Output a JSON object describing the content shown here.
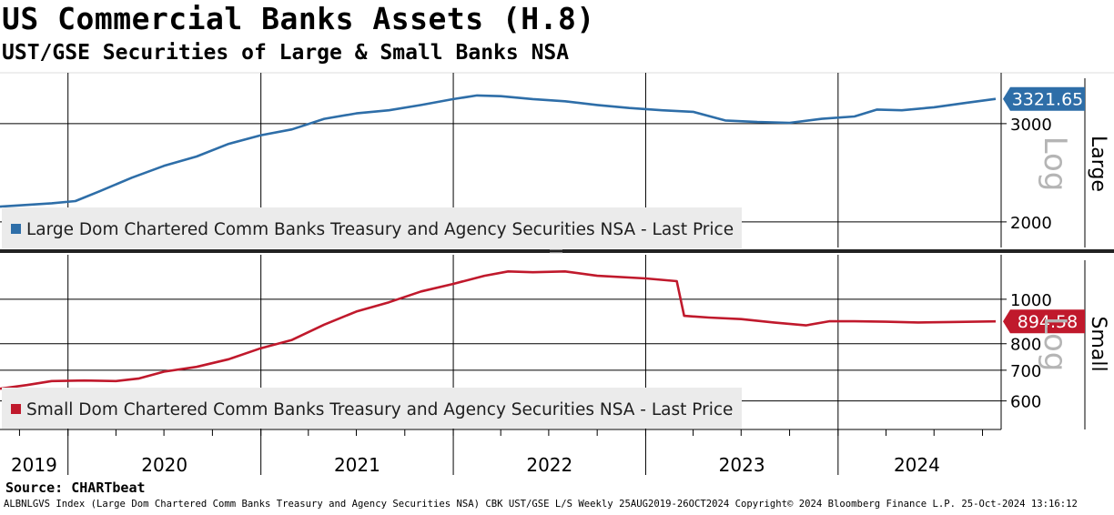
{
  "header": {
    "title": "US Commercial Banks Assets (H.8)",
    "subtitle": "UST/GSE Securities of Large & Small Banks NSA"
  },
  "footer": {
    "source": "Source: CHARTbeat",
    "info": "ALBNLGVS Index (Large Dom Chartered Comm Banks Treasury and Agency Securities NSA) CBK UST/GSE L/S  Weekly 25AUG2019-26OCT2024  Copyright© 2024 Bloomberg Finance L.P. 25-Oct-2024 13:16:12"
  },
  "colors": {
    "large": "#2e6ea8",
    "small": "#c0192c",
    "legend_bg": "#ebebeb"
  },
  "chart_data": [
    {
      "type": "line",
      "title": "",
      "x_range": [
        "2019-08-25",
        "2024-10-26"
      ],
      "x_tick_labels": [
        "2019",
        "2020",
        "2021",
        "2022",
        "2023",
        "2024"
      ],
      "ylabel": "Large",
      "scale": "log",
      "scale_label": "Log",
      "yticks": [
        2000,
        3000
      ],
      "ylim": [
        1800,
        3700
      ],
      "last_value_label": "3321.65",
      "legend": "top-left",
      "series": [
        {
          "name": "Large Dom Chartered Comm Banks Treasury and Agency Securities NSA - Last Price",
          "points": [
            [
              "2019-08-25",
              2130
            ],
            [
              "2019-12-01",
              2160
            ],
            [
              "2020-01-15",
              2180
            ],
            [
              "2020-03-01",
              2270
            ],
            [
              "2020-05-01",
              2400
            ],
            [
              "2020-07-01",
              2520
            ],
            [
              "2020-09-01",
              2620
            ],
            [
              "2020-11-01",
              2760
            ],
            [
              "2021-01-01",
              2860
            ],
            [
              "2021-03-01",
              2930
            ],
            [
              "2021-05-01",
              3060
            ],
            [
              "2021-07-01",
              3130
            ],
            [
              "2021-09-01",
              3170
            ],
            [
              "2021-11-01",
              3240
            ],
            [
              "2022-01-01",
              3320
            ],
            [
              "2022-02-15",
              3370
            ],
            [
              "2022-04-01",
              3360
            ],
            [
              "2022-06-01",
              3320
            ],
            [
              "2022-08-01",
              3290
            ],
            [
              "2022-10-01",
              3240
            ],
            [
              "2022-12-01",
              3200
            ],
            [
              "2023-02-01",
              3170
            ],
            [
              "2023-04-01",
              3150
            ],
            [
              "2023-06-01",
              3040
            ],
            [
              "2023-08-01",
              3020
            ],
            [
              "2023-10-01",
              3010
            ],
            [
              "2023-12-01",
              3060
            ],
            [
              "2024-02-01",
              3090
            ],
            [
              "2024-03-15",
              3180
            ],
            [
              "2024-05-01",
              3170
            ],
            [
              "2024-07-01",
              3210
            ],
            [
              "2024-09-01",
              3270
            ],
            [
              "2024-10-26",
              3321.65
            ]
          ]
        }
      ]
    },
    {
      "type": "line",
      "title": "",
      "x_range": [
        "2019-08-25",
        "2024-10-26"
      ],
      "x_tick_labels": [
        "2019",
        "2020",
        "2021",
        "2022",
        "2023",
        "2024"
      ],
      "ylabel": "Small",
      "scale": "log",
      "scale_label": "Log",
      "yticks": [
        600,
        700,
        800,
        1000
      ],
      "ylim": [
        520,
        1250
      ],
      "last_value_label": "894.58",
      "legend": "bottom-left",
      "series": [
        {
          "name": "Small Dom Chartered Comm Banks Treasury and Agency Securities NSA - Last Price",
          "points": [
            [
              "2019-08-25",
              638
            ],
            [
              "2019-10-15",
              650
            ],
            [
              "2019-12-01",
              663
            ],
            [
              "2020-02-01",
              665
            ],
            [
              "2020-04-01",
              663
            ],
            [
              "2020-05-15",
              672
            ],
            [
              "2020-07-01",
              695
            ],
            [
              "2020-09-01",
              712
            ],
            [
              "2020-11-01",
              740
            ],
            [
              "2021-01-01",
              782
            ],
            [
              "2021-03-01",
              815
            ],
            [
              "2021-05-01",
              880
            ],
            [
              "2021-07-01",
              940
            ],
            [
              "2021-09-01",
              985
            ],
            [
              "2021-11-01",
              1040
            ],
            [
              "2022-01-01",
              1080
            ],
            [
              "2022-03-01",
              1125
            ],
            [
              "2022-04-15",
              1150
            ],
            [
              "2022-06-01",
              1145
            ],
            [
              "2022-08-01",
              1150
            ],
            [
              "2022-10-01",
              1125
            ],
            [
              "2023-01-01",
              1110
            ],
            [
              "2023-03-01",
              1095
            ],
            [
              "2023-03-15",
              920
            ],
            [
              "2023-05-01",
              912
            ],
            [
              "2023-07-01",
              905
            ],
            [
              "2023-09-01",
              890
            ],
            [
              "2023-11-01",
              877
            ],
            [
              "2023-12-15",
              895
            ],
            [
              "2024-02-01",
              895
            ],
            [
              "2024-04-01",
              893
            ],
            [
              "2024-06-01",
              890
            ],
            [
              "2024-08-01",
              892
            ],
            [
              "2024-10-26",
              894.58
            ]
          ]
        }
      ]
    }
  ]
}
